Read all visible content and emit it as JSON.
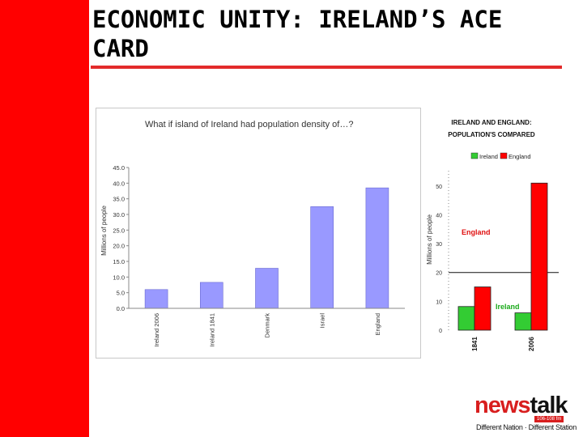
{
  "slide": {
    "title": "ECONOMIC UNITY: IRELAND’S ACE\nCARD",
    "accent_color": "#ff0000"
  },
  "logo": {
    "brand_part1": "news",
    "brand_part2": "talk",
    "frequency": "106-108 fm",
    "tagline": "Different Nation · Different Station"
  },
  "chart_data": [
    {
      "type": "bar",
      "title": "What if island of Ireland had population density of…?",
      "xlabel": "",
      "ylabel": "Millions of people",
      "categories": [
        "Ireland 2006",
        "Ireland 1841",
        "Denmark",
        "Israel",
        "England"
      ],
      "values": [
        6.0,
        8.3,
        12.8,
        32.5,
        38.5
      ],
      "ylim": [
        0,
        45
      ],
      "yticks": [
        "0.0",
        "5.0",
        "10.0",
        "15.0",
        "20.0",
        "25.0",
        "30.0",
        "35.0",
        "40.0",
        "45.0"
      ],
      "grid": false,
      "bar_color": "#9999ff"
    },
    {
      "type": "bar",
      "title": "IRELAND AND ENGLAND:\nPOPULATION'S COMPARED",
      "xlabel": "",
      "ylabel": "Millions of people",
      "categories": [
        "1841",
        "2006"
      ],
      "series": [
        {
          "name": "Ireland",
          "values": [
            8.2,
            6.0
          ],
          "color": "#33cc33"
        },
        {
          "name": "England",
          "values": [
            15.0,
            51.0
          ],
          "color": "#ff0000"
        }
      ],
      "ylim": [
        0,
        55
      ],
      "yticks": [
        "0",
        "10",
        "20",
        "30",
        "40",
        "50"
      ],
      "legend": "top",
      "annotations": [
        "England",
        "Ireland"
      ],
      "reference_line": 20
    }
  ]
}
